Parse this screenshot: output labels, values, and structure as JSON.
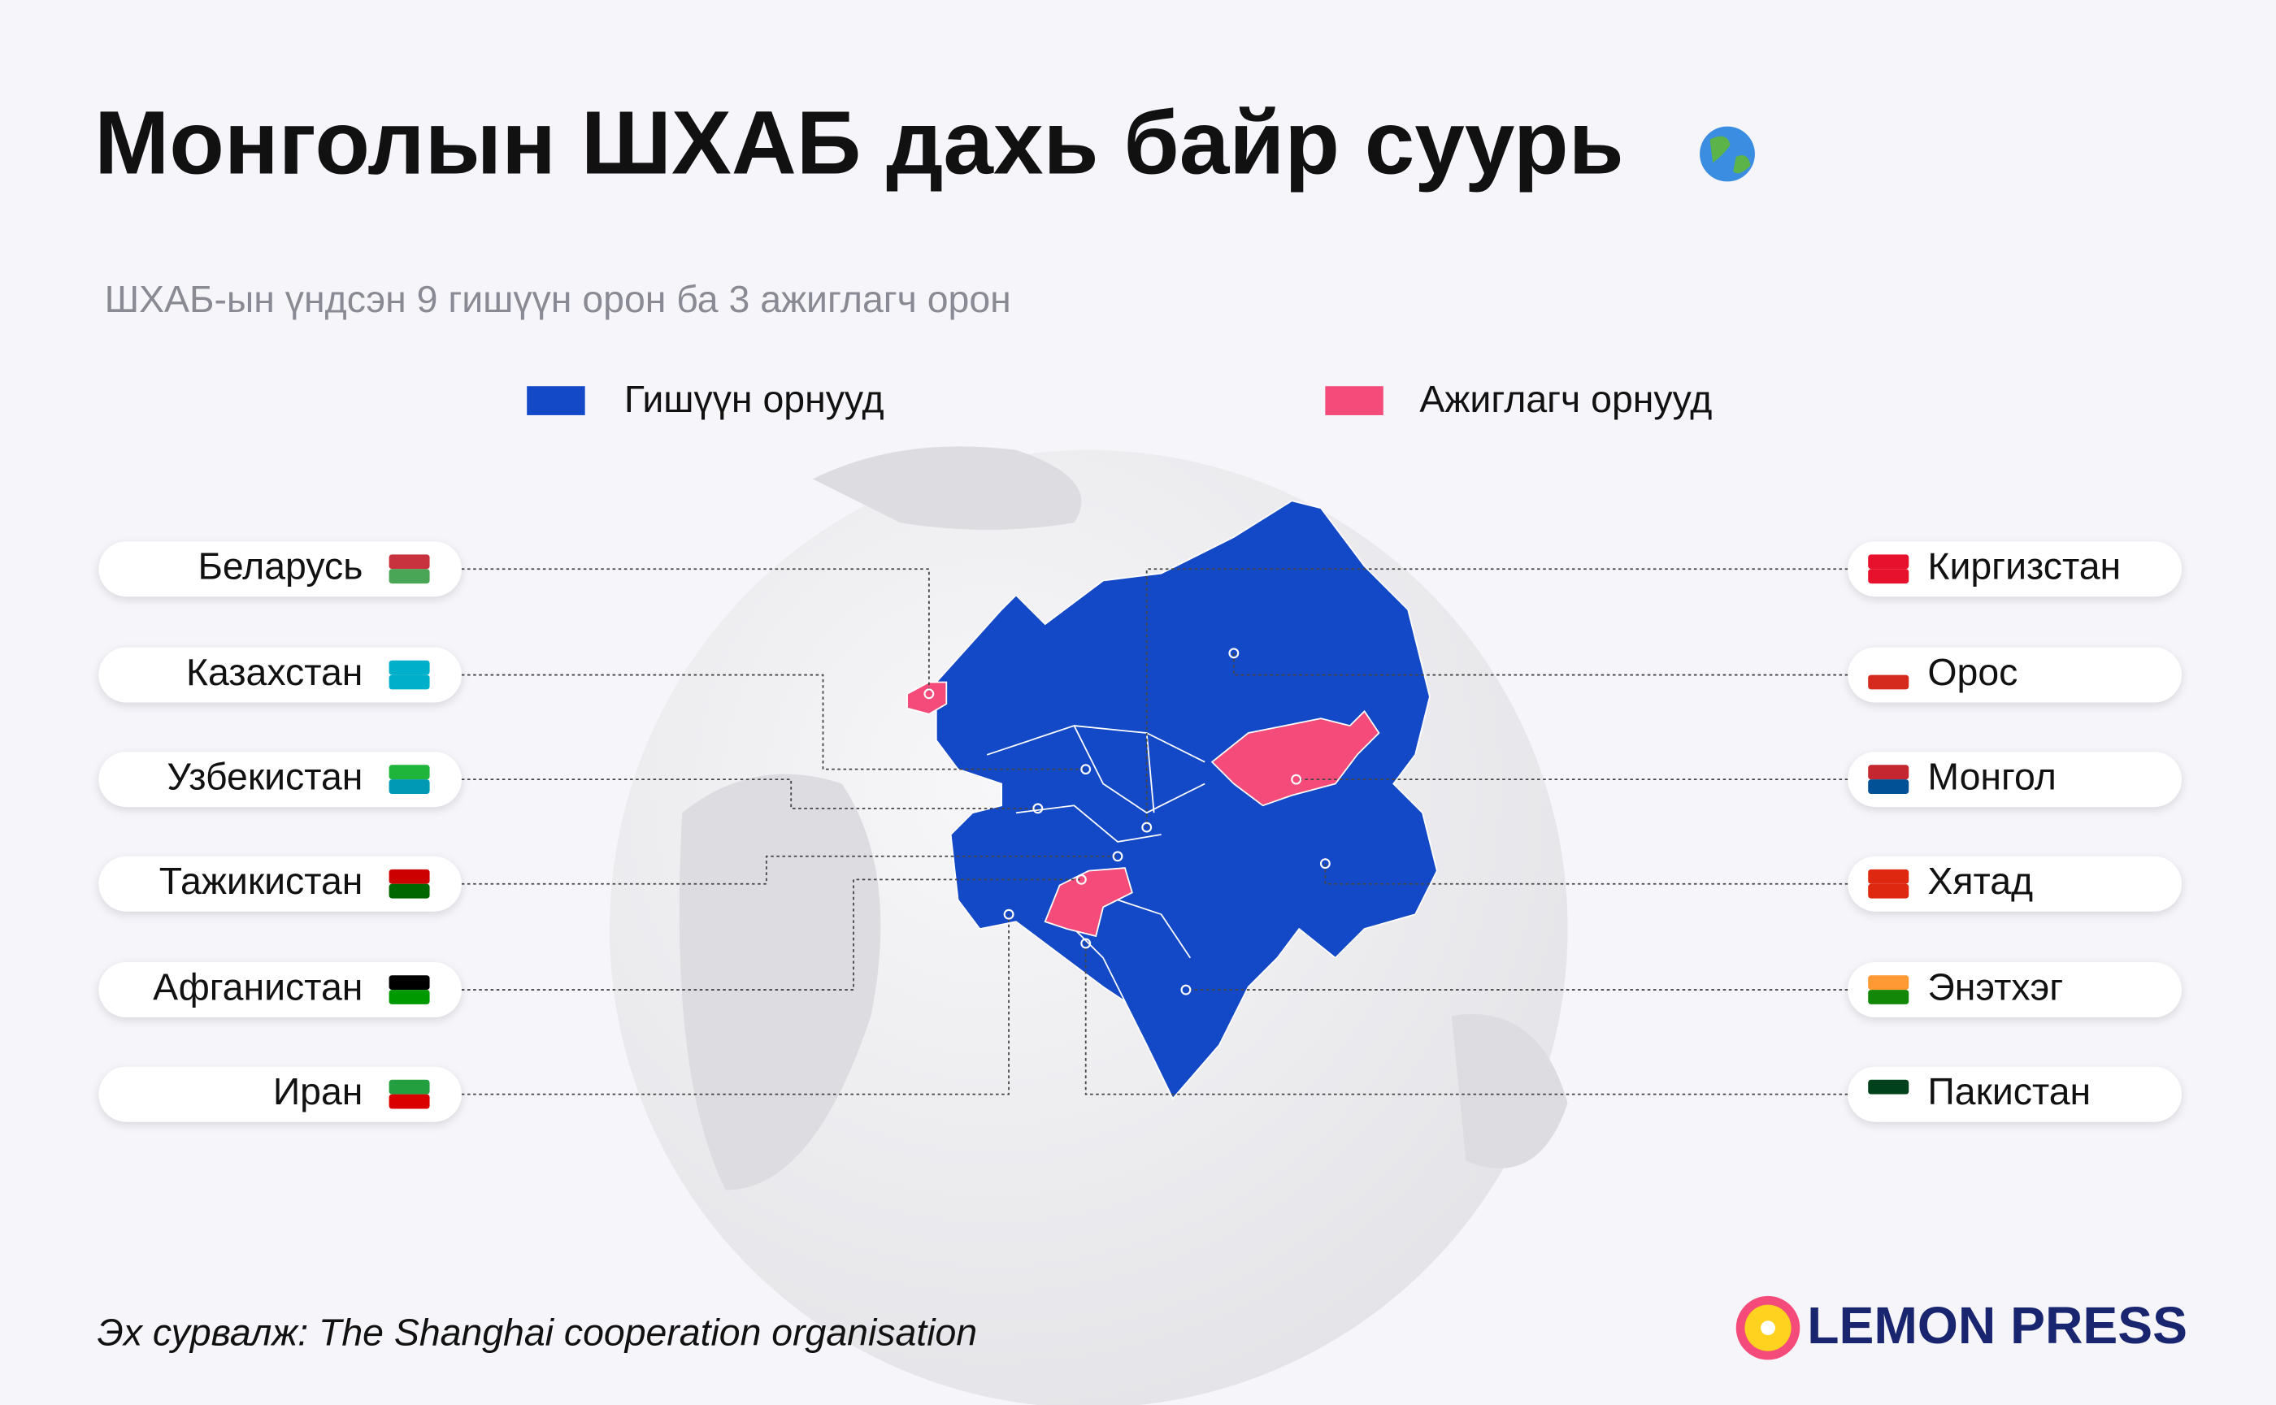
{
  "header": {
    "title": "Монголын ШХАБ дахь байр суурь",
    "subtitle": "ШХАБ-ын үндсэн 9 гишүүн орон ба 3 ажиглагч орон"
  },
  "legend": [
    {
      "label": "Гишүүн орнууд",
      "color": "#1349c6"
    },
    {
      "label": "Ажиглагч орнууд",
      "color": "#f54b7a"
    }
  ],
  "left_labels": [
    "Беларусь",
    "Казахстан",
    "Узбекистан",
    "Тажикистан",
    "Афганистан",
    "Иран"
  ],
  "right_labels": [
    "Киргизстан",
    "Орос",
    "Монгол",
    "Хятад",
    "Энэтхэг",
    "Пакистан"
  ],
  "source": "Эх сурвалж: The Shanghai cooperation organisation",
  "brand": "LEMON PRESS"
}
